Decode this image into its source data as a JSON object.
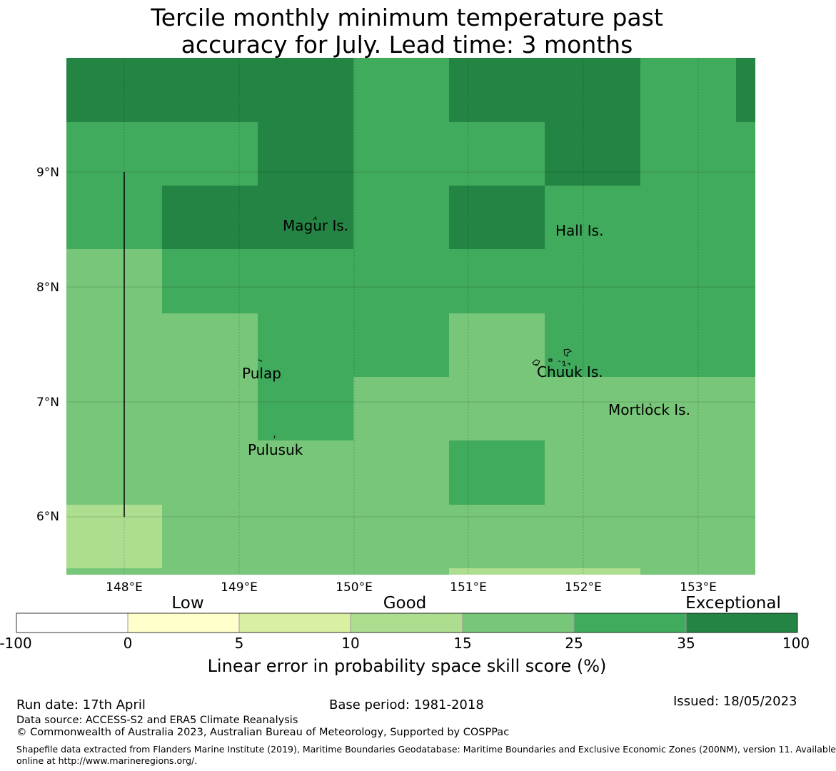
{
  "title_line1": "Tercile monthly minimum temperature past",
  "title_line2": "accuracy for July. Lead time: 3 months",
  "map": {
    "lon_ticks": [
      "148°E",
      "149°E",
      "150°E",
      "151°E",
      "152°E",
      "153°E"
    ],
    "lat_ticks": [
      "9°N",
      "8°N",
      "7°N",
      "6°N"
    ],
    "places": [
      "Magur Is.",
      "Hall Is.",
      "Pulap",
      "Chuuk Is.",
      "Mortlock Is.",
      "Pulusuk"
    ]
  },
  "colorbar": {
    "categories": [
      "Low",
      "Good",
      "Exceptional"
    ],
    "ticks": [
      "-100",
      "0",
      "5",
      "10",
      "15",
      "25",
      "35",
      "100"
    ],
    "colors": [
      "#ffffff",
      "#ffffcc",
      "#d9f0a3",
      "#addd8e",
      "#78c679",
      "#41ab5d",
      "#238443"
    ],
    "label": "Linear error in probability space skill score (%)"
  },
  "footer": {
    "run_date": "Run date: 17th April",
    "base_period": "Base period: 1981-2018",
    "issued": "Issued: 18/05/2023",
    "data_source": "Data source: ACCESS-S2 and ERA5 Climate Reanalysis",
    "copyright": "© Commonwealth of Australia 2023, Australian Bureau of Meteorology, Supported by COSPPac",
    "shapefile_line1": "Shapefile data extracted from Flanders Marine Institute (2019), Maritime Boundaries Geodatabase: Maritime Boundaries and Exclusive Economic Zones (200NM), version 11. Available",
    "shapefile_line2": "online at http://www.marineregions.org/."
  }
}
